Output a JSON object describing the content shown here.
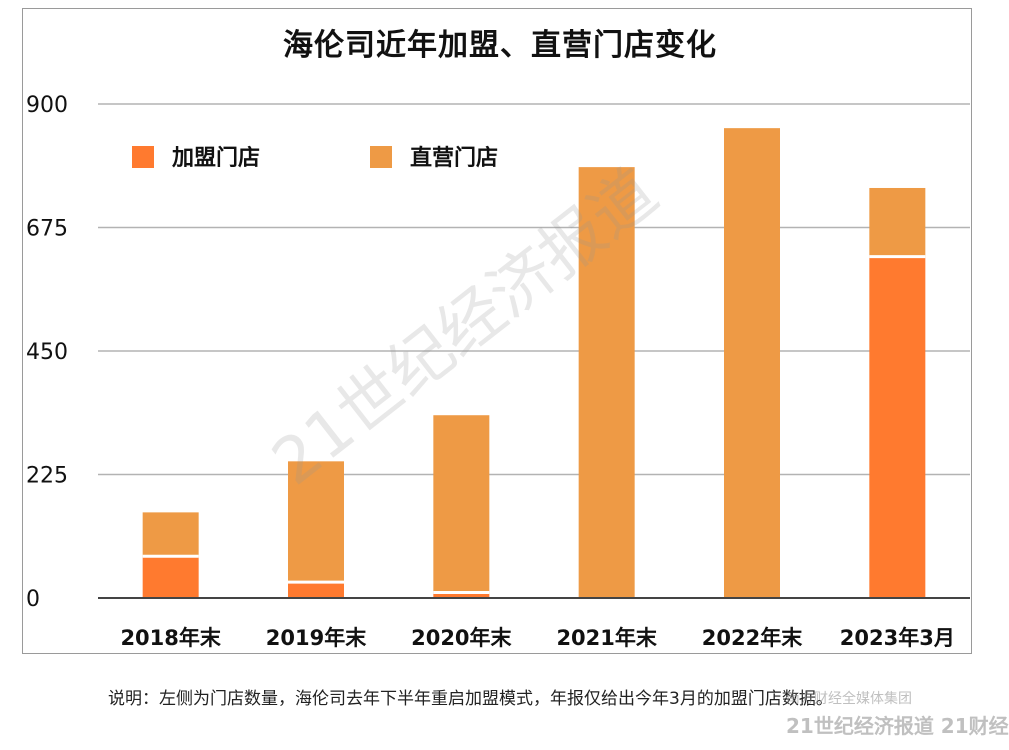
{
  "chart_data": {
    "type": "bar",
    "stacked": true,
    "title": "海伦司近年加盟、直营门店变化",
    "categories": [
      "2018年末",
      "2019年末",
      "2020年末",
      "2021年末",
      "2022年末",
      "2023年3月"
    ],
    "series": [
      {
        "name": "加盟门店",
        "color": "#FF7A2F",
        "values": [
          76,
          29,
          10,
          0,
          0,
          622
        ]
      },
      {
        "name": "直营门店",
        "color": "#EE9A45",
        "values": [
          80,
          220,
          323,
          785,
          856,
          125
        ]
      }
    ],
    "ylim": [
      0,
      900
    ],
    "yticks": [
      0,
      225,
      450,
      675,
      900
    ],
    "grid": true,
    "legend": "top-left",
    "xlabel": "",
    "ylabel": ""
  },
  "note": "说明：左侧为门店数量，海伦司去年下半年重启加盟模式，年报仅给出今年3月的加盟门店数据。",
  "watermark": "21世纪经济报道",
  "logo": {
    "line1": "南方财经全媒体集团",
    "line2": "21世纪经济报道  21财经"
  }
}
